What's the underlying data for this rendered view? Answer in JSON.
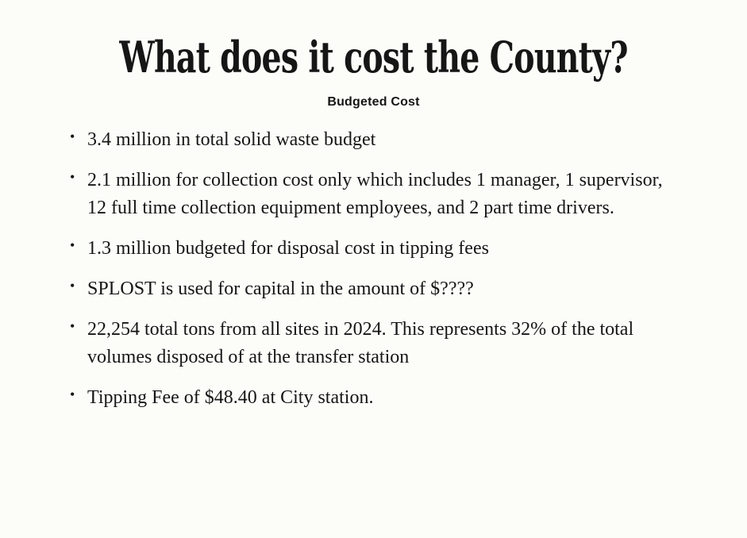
{
  "slide": {
    "title": "What does it cost the County?",
    "subtitle": "Budgeted Cost",
    "bullets": [
      "3.4 million in total solid waste budget",
      "2.1 million for collection cost only which includes 1 manager, 1 supervisor, 12 full time collection equipment employees, and 2 part time drivers.",
      "1.3 million budgeted for disposal cost in tipping fees",
      "SPLOST is used for capital in the amount of $????",
      "22,254 total tons from all sites in 2024. This represents 32% of the total volumes disposed of at the transfer station",
      "Tipping Fee of $48.40 at City station."
    ],
    "bullet_glyph": "•",
    "colors": {
      "background": "#fcfdf9",
      "text": "#161616"
    }
  }
}
